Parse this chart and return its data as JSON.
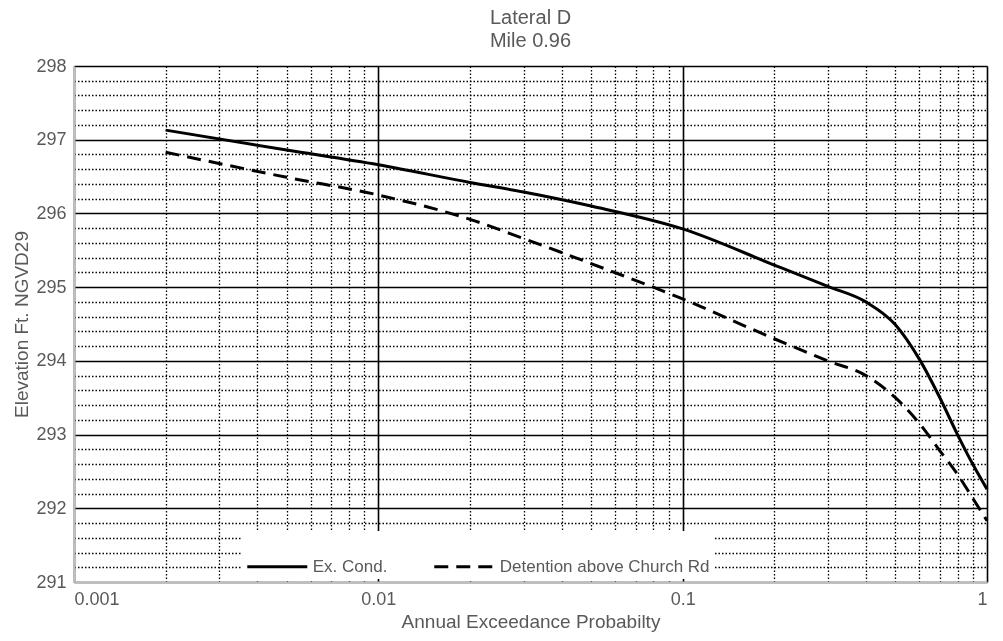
{
  "chart_data": {
    "type": "line",
    "title": "Lateral D",
    "subtitle": "Mile 0.96",
    "xlabel": "Annual Exceedance Probabilty",
    "ylabel": "Elevation Ft. NGVD29",
    "x": [
      0.002,
      0.005,
      0.01,
      0.02,
      0.03,
      0.05,
      0.1,
      0.2,
      0.3,
      0.4,
      0.5,
      0.6,
      0.7,
      0.8,
      0.9,
      1
    ],
    "series": [
      {
        "name": "Ex. Cond.",
        "color": "#000000",
        "line_style": "solid",
        "values": [
          297.13,
          296.86,
          296.66,
          296.42,
          296.29,
          296.1,
          295.79,
          295.3,
          295.01,
          294.8,
          294.49,
          294.02,
          293.5,
          293.0,
          292.59,
          292.26
        ]
      },
      {
        "name": "Detention above Church Rd",
        "color": "#000000",
        "line_style": "dashed",
        "values": [
          296.83,
          296.49,
          296.25,
          295.92,
          295.66,
          295.32,
          294.84,
          294.3,
          294.0,
          293.8,
          293.5,
          293.15,
          292.78,
          292.46,
          292.13,
          291.83
        ]
      }
    ],
    "xlim": [
      0.001,
      1
    ],
    "ylim": [
      291,
      298
    ],
    "xticks": [
      0.001,
      {
        "value": 0.002,
        "label": null
      },
      {
        "value": 0.003,
        "label": null
      },
      {
        "value": 0.004,
        "label": null
      },
      {
        "value": 0.005,
        "label": null
      },
      {
        "value": 0.006,
        "label": null
      },
      {
        "value": 0.007,
        "label": null
      },
      {
        "value": 0.008,
        "label": null
      },
      {
        "value": 0.009,
        "label": null
      },
      0.01,
      {
        "value": 0.02,
        "label": null
      },
      {
        "value": 0.03,
        "label": null
      },
      {
        "value": 0.04,
        "label": null
      },
      {
        "value": 0.05,
        "label": null
      },
      {
        "value": 0.06,
        "label": null
      },
      {
        "value": 0.07,
        "label": null
      },
      {
        "value": 0.08,
        "label": null
      },
      {
        "value": 0.09,
        "label": null
      },
      0.1,
      {
        "value": 0.2,
        "label": null
      },
      {
        "value": 0.3,
        "label": null
      },
      {
        "value": 0.4,
        "label": null
      },
      {
        "value": 0.5,
        "label": null
      },
      {
        "value": 0.6,
        "label": null
      },
      {
        "value": 0.7,
        "label": null
      },
      {
        "value": 0.8,
        "label": null
      },
      {
        "value": 0.9,
        "label": null
      },
      1
    ],
    "yticks": [
      291,
      {
        "value": 291.2,
        "label": null
      },
      {
        "value": 291.4,
        "label": null
      },
      {
        "value": 291.6,
        "label": null
      },
      {
        "value": 291.8,
        "label": null
      },
      292,
      {
        "value": 292.2,
        "label": null
      },
      {
        "value": 292.4,
        "label": null
      },
      {
        "value": 292.6,
        "label": null
      },
      {
        "value": 292.8,
        "label": null
      },
      293,
      {
        "value": 293.2,
        "label": null
      },
      {
        "value": 293.4,
        "label": null
      },
      {
        "value": 293.6,
        "label": null
      },
      {
        "value": 293.8,
        "label": null
      },
      294,
      {
        "value": 294.2,
        "label": null
      },
      {
        "value": 294.4,
        "label": null
      },
      {
        "value": 294.6,
        "label": null
      },
      {
        "value": 294.8,
        "label": null
      },
      295,
      {
        "value": 295.2,
        "label": null
      },
      {
        "value": 295.4,
        "label": null
      },
      {
        "value": 295.6,
        "label": null
      },
      {
        "value": 295.8,
        "label": null
      },
      296,
      {
        "value": 296.2,
        "label": null
      },
      {
        "value": 296.4,
        "label": null
      },
      {
        "value": 296.6,
        "label": null
      },
      {
        "value": 296.8,
        "label": null
      },
      297,
      {
        "value": 297.2,
        "label": null
      },
      {
        "value": 297.4,
        "label": null
      },
      {
        "value": 297.6,
        "label": null
      },
      {
        "value": 297.8,
        "label": null
      },
      298
    ],
    "log": "x",
    "grid": true,
    "legend": "bottom",
    "marker": "none"
  }
}
